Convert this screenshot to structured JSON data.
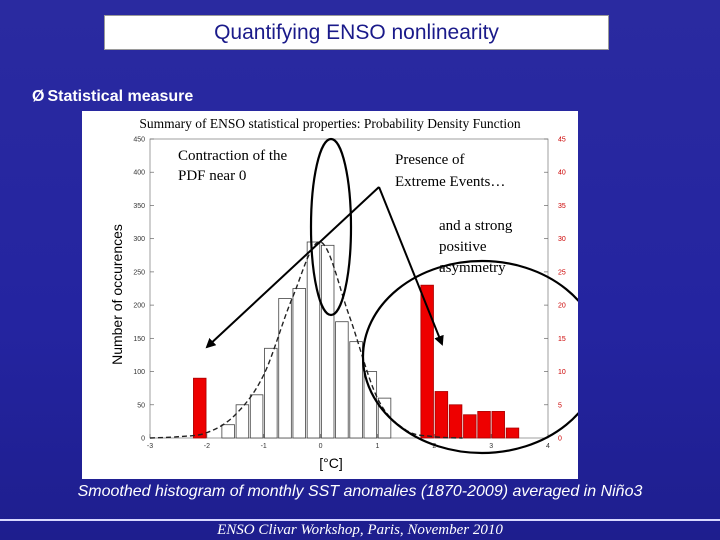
{
  "slide": {
    "title": "Quantifying ENSO nonlinearity",
    "bullet_arrow": "Ø",
    "bullet": "Statistical measure",
    "caption": "Smoothed histogram of monthly SST anomalies (1870-2009) averaged in Niño3",
    "footer": "ENSO Clivar Workshop, Paris, November 2010"
  },
  "annotations": {
    "contraction": [
      "Contraction of the",
      "PDF near 0"
    ],
    "extreme": [
      "Presence of",
      "Extreme Events…"
    ],
    "asymmetry": [
      "and a strong",
      "positive",
      "asymmetry"
    ]
  },
  "colors": {
    "red_bar": "#ee0000",
    "white_bar_edge": "#444444",
    "arrow": "#000000",
    "right_axis_text": "#cc0000"
  },
  "chart_data": {
    "type": "bar",
    "title": "Summary of ENSO statistical properties: Probability Density Function",
    "xlabel": "[°C]",
    "ylabel": "Number of occurences",
    "xlim": [
      -3,
      4
    ],
    "ylim_left": [
      0,
      450
    ],
    "ylim_right": [
      0,
      45
    ],
    "x_ticks": [
      "-3",
      "-2",
      "-1",
      "0",
      "1",
      "2",
      "3",
      "4"
    ],
    "left_ticks": [
      "0",
      "50",
      "100",
      "150",
      "200",
      "250",
      "300",
      "350",
      "400",
      "450"
    ],
    "right_ticks": [
      "0",
      "5",
      "10",
      "15",
      "20",
      "25",
      "30",
      "35",
      "40",
      "45"
    ],
    "bin_width": 0.25,
    "series": [
      {
        "axis": "left",
        "style": "white",
        "bins": [
          {
            "x": -1.75,
            "value": 20
          },
          {
            "x": -1.5,
            "value": 50
          },
          {
            "x": -1.25,
            "value": 65
          },
          {
            "x": -1.0,
            "value": 135
          },
          {
            "x": -0.75,
            "value": 210
          },
          {
            "x": -0.5,
            "value": 225
          },
          {
            "x": -0.25,
            "value": 295
          },
          {
            "x": 0.0,
            "value": 290
          },
          {
            "x": 0.25,
            "value": 175
          },
          {
            "x": 0.5,
            "value": 145
          },
          {
            "x": 0.75,
            "value": 100
          },
          {
            "x": 1.0,
            "value": 60
          }
        ]
      },
      {
        "axis": "right",
        "style": "red",
        "bins": [
          {
            "x": -2.25,
            "value": 9
          },
          {
            "x": 1.75,
            "value": 23
          },
          {
            "x": 2.0,
            "value": 7
          },
          {
            "x": 2.25,
            "value": 5
          },
          {
            "x": 2.5,
            "value": 3.5
          },
          {
            "x": 2.75,
            "value": 4
          },
          {
            "x": 3.0,
            "value": 4
          },
          {
            "x": 3.25,
            "value": 1.5
          }
        ]
      }
    ],
    "fit_curve": {
      "style": "dashed",
      "points": [
        [
          -3.0,
          0
        ],
        [
          -2.5,
          2
        ],
        [
          -2.0,
          8
        ],
        [
          -1.5,
          35
        ],
        [
          -1.0,
          95
        ],
        [
          -0.5,
          210
        ],
        [
          0.0,
          295
        ],
        [
          0.5,
          185
        ],
        [
          1.0,
          60
        ],
        [
          1.5,
          12
        ],
        [
          2.0,
          2
        ],
        [
          2.5,
          0
        ]
      ]
    }
  }
}
